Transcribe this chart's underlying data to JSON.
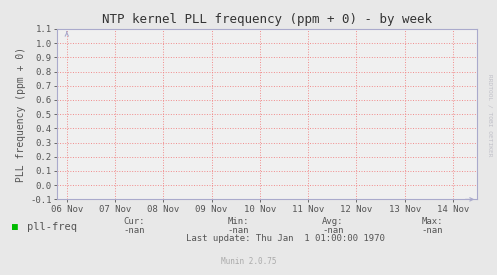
{
  "title": "NTP kernel PLL frequency (ppm + 0) - by week",
  "ylabel": "PLL frequency (ppm + 0)",
  "background_color": "#e8e8e8",
  "plot_bg_color": "#f0f0f0",
  "grid_color": "#f08080",
  "axis_color": "#aaaacc",
  "title_color": "#333333",
  "label_color": "#555555",
  "tick_color": "#555555",
  "ylim": [
    -0.1,
    1.1
  ],
  "yticks": [
    -0.1,
    0.0,
    0.1,
    0.2,
    0.3,
    0.4,
    0.5,
    0.6,
    0.7,
    0.8,
    0.9,
    1.0,
    1.1
  ],
  "xtick_labels": [
    "06 Nov",
    "07 Nov",
    "08 Nov",
    "09 Nov",
    "10 Nov",
    "11 Nov",
    "12 Nov",
    "13 Nov",
    "14 Nov"
  ],
  "xtick_positions": [
    0,
    1,
    2,
    3,
    4,
    5,
    6,
    7,
    8
  ],
  "xlim": [
    -0.2,
    8.5
  ],
  "legend_label": "pll-freq",
  "legend_color": "#00bb00",
  "cur_label": "Cur:",
  "cur_value": "-nan",
  "min_label": "Min:",
  "min_value": "-nan",
  "avg_label": "Avg:",
  "avg_value": "-nan",
  "max_label": "Max:",
  "max_value": "-nan",
  "last_update": "Last update: Thu Jan  1 01:00:00 1970",
  "munin_version": "Munin 2.0.75",
  "right_label": "RRDTOOL / TOBI OETIKER",
  "title_fontsize": 9,
  "axis_label_fontsize": 7,
  "tick_fontsize": 6.5,
  "legend_fontsize": 7.5,
  "footer_fontsize": 6.5
}
